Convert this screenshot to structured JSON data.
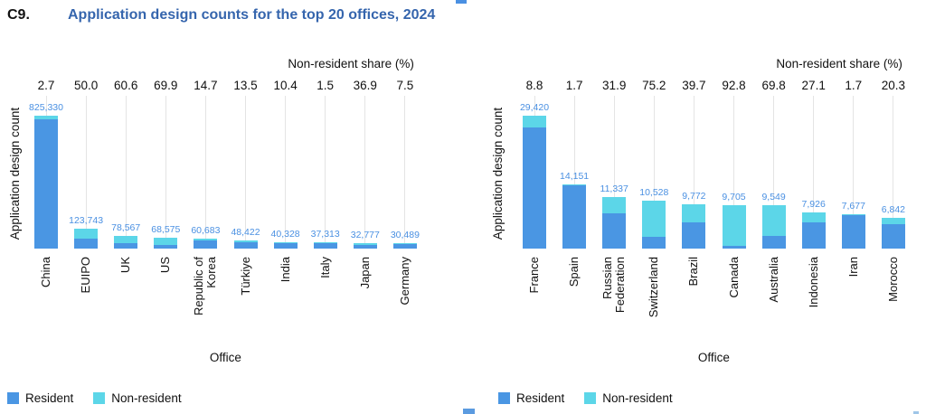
{
  "header": {
    "code": "C9.",
    "title": "Application design counts for the top 20 offices, 2024"
  },
  "chart_data": [
    {
      "type": "bar",
      "stacked": true,
      "top_axis_title": "Non-resident share (%)",
      "ylabel": "Application design count",
      "xlabel": "Office",
      "legend": [
        "Resident",
        "Non-resident"
      ],
      "legend_position": "bottom-left",
      "grid": "vertical-only",
      "ylim": [
        0,
        825330
      ],
      "categories": [
        "China",
        "EUIPO",
        "UK",
        "US",
        "Republic of\nKorea",
        "Türkiye",
        "India",
        "Italy",
        "Japan",
        "Germany"
      ],
      "values": [
        825330,
        123743,
        78567,
        68575,
        60683,
        48422,
        40328,
        37313,
        32777,
        30489
      ],
      "value_labels": [
        "825,330",
        "123,743",
        "78,567",
        "68,575",
        "60,683",
        "48,422",
        "40,328",
        "37,313",
        "32,777",
        "30,489"
      ],
      "nonresident_share_pct": [
        2.7,
        50.0,
        60.6,
        69.9,
        14.7,
        13.5,
        10.4,
        1.5,
        36.9,
        7.5
      ],
      "nonresident_share_labels": [
        "2.7",
        "50.0",
        "60.6",
        "69.9",
        "14.7",
        "13.5",
        "10.4",
        "1.5",
        "36.9",
        "7.5"
      ],
      "series": [
        {
          "name": "Resident",
          "note": "blue lower segment = value * (100 - nonresident_share_pct)/100"
        },
        {
          "name": "Non-resident",
          "note": "cyan upper segment = value * nonresident_share_pct/100"
        }
      ]
    },
    {
      "type": "bar",
      "stacked": true,
      "top_axis_title": "Non-resident share (%)",
      "ylabel": "Application design count",
      "xlabel": "Office",
      "legend": [
        "Resident",
        "Non-resident"
      ],
      "legend_position": "bottom-left",
      "grid": "vertical-only",
      "ylim": [
        0,
        29420
      ],
      "categories": [
        "France",
        "Spain",
        "Russian\nFederation",
        "Switzerland",
        "Brazil",
        "Canada",
        "Australia",
        "Indonesia",
        "Iran",
        "Morocco"
      ],
      "values": [
        29420,
        14151,
        11337,
        10528,
        9772,
        9705,
        9549,
        7926,
        7677,
        6842
      ],
      "value_labels": [
        "29,420",
        "14,151",
        "11,337",
        "10,528",
        "9,772",
        "9,705",
        "9,549",
        "7,926",
        "7,677",
        "6,842"
      ],
      "nonresident_share_pct": [
        8.8,
        1.7,
        31.9,
        75.2,
        39.7,
        92.8,
        69.8,
        27.1,
        1.7,
        20.3
      ],
      "nonresident_share_labels": [
        "8.8",
        "1.7",
        "31.9",
        "75.2",
        "39.7",
        "92.8",
        "69.8",
        "27.1",
        "1.7",
        "20.3"
      ],
      "series": [
        {
          "name": "Resident",
          "note": "blue lower segment = value * (100 - nonresident_share_pct)/100"
        },
        {
          "name": "Non-resident",
          "note": "cyan upper segment = value * nonresident_share_pct/100"
        }
      ]
    }
  ],
  "colors": {
    "resident": "#4a96e3",
    "nonresident": "#5cd6e8",
    "title": "#3565ad",
    "value_label": "#4a90e2",
    "gridline": "#e4e4e4",
    "text": "#111111"
  }
}
